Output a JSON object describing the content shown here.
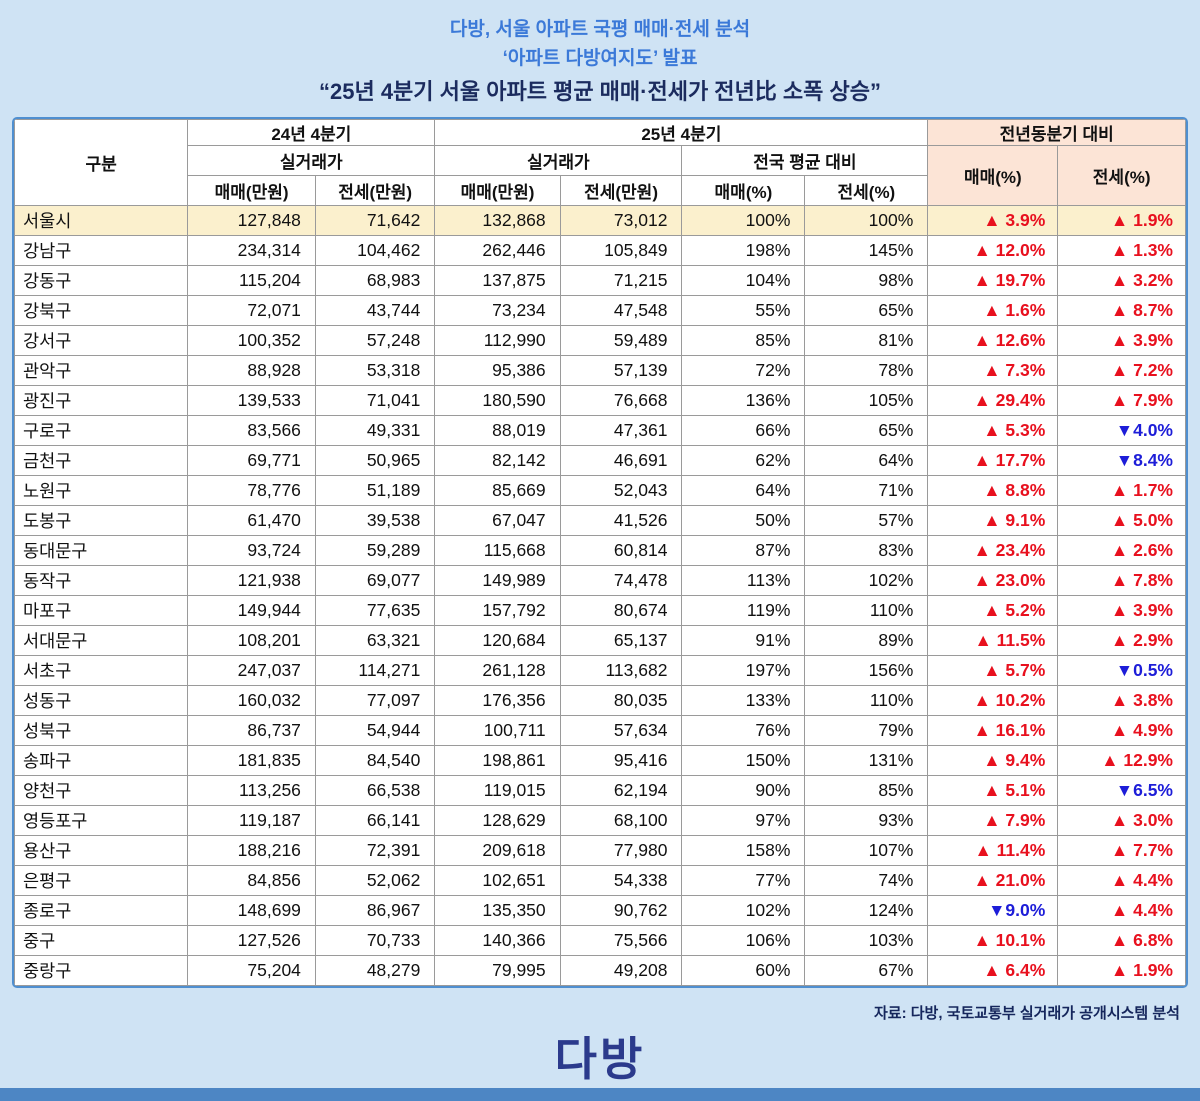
{
  "title": {
    "line1": "다방, 서울 아파트 국평 매매·전세 분석",
    "line2": "‘아파트 다방여지도’ 발표",
    "line3": "“25년 4분기 서울 아파트 평균 매매·전세가 전년比 소폭 상승”"
  },
  "table": {
    "headers": {
      "gubun": "구분",
      "q4_24": "24년 4분기",
      "q4_25": "25년 4분기",
      "yoy": "전년동분기 대비",
      "actual": "실거래가",
      "national_avg": "전국 평균 대비",
      "sale_manwon": "매매(만원)",
      "jeonse_manwon": "전세(만원)",
      "sale_pct": "매매(%)",
      "jeonse_pct": "전세(%)"
    }
  },
  "chart_data": {
    "type": "table",
    "title": "25년 4분기 서울 아파트 평균 매매·전세가 전년比 소폭 상승",
    "column_groups": [
      "구분",
      "24년 4분기 실거래가",
      "25년 4분기 실거래가",
      "25년 4분기 전국 평균 대비",
      "전년동분기 대비"
    ],
    "columns": [
      "구분",
      "24년4분기 매매(만원)",
      "24년4분기 전세(만원)",
      "25년4분기 매매(만원)",
      "25년4분기 전세(만원)",
      "전국평균대비 매매(%)",
      "전국평균대비 전세(%)",
      "전년동분기대비 매매(%)",
      "전년동분기대비 전세(%)"
    ],
    "rows": [
      {
        "name": "서울시",
        "highlight": true,
        "values": [
          "127,848",
          "71,642",
          "132,868",
          "73,012",
          "100%",
          "100%"
        ],
        "sale_change": "▲ 3.9%",
        "jeonse_change": "▲ 1.9%"
      },
      {
        "name": "강남구",
        "highlight": false,
        "values": [
          "234,314",
          "104,462",
          "262,446",
          "105,849",
          "198%",
          "145%"
        ],
        "sale_change": "▲ 12.0%",
        "jeonse_change": "▲ 1.3%"
      },
      {
        "name": "강동구",
        "highlight": false,
        "values": [
          "115,204",
          "68,983",
          "137,875",
          "71,215",
          "104%",
          "98%"
        ],
        "sale_change": "▲ 19.7%",
        "jeonse_change": "▲ 3.2%"
      },
      {
        "name": "강북구",
        "highlight": false,
        "values": [
          "72,071",
          "43,744",
          "73,234",
          "47,548",
          "55%",
          "65%"
        ],
        "sale_change": "▲ 1.6%",
        "jeonse_change": "▲ 8.7%"
      },
      {
        "name": "강서구",
        "highlight": false,
        "values": [
          "100,352",
          "57,248",
          "112,990",
          "59,489",
          "85%",
          "81%"
        ],
        "sale_change": "▲ 12.6%",
        "jeonse_change": "▲ 3.9%"
      },
      {
        "name": "관악구",
        "highlight": false,
        "values": [
          "88,928",
          "53,318",
          "95,386",
          "57,139",
          "72%",
          "78%"
        ],
        "sale_change": "▲ 7.3%",
        "jeonse_change": "▲ 7.2%"
      },
      {
        "name": "광진구",
        "highlight": false,
        "values": [
          "139,533",
          "71,041",
          "180,590",
          "76,668",
          "136%",
          "105%"
        ],
        "sale_change": "▲ 29.4%",
        "jeonse_change": "▲ 7.9%"
      },
      {
        "name": "구로구",
        "highlight": false,
        "values": [
          "83,566",
          "49,331",
          "88,019",
          "47,361",
          "66%",
          "65%"
        ],
        "sale_change": "▲ 5.3%",
        "jeonse_change": "▼4.0%"
      },
      {
        "name": "금천구",
        "highlight": false,
        "values": [
          "69,771",
          "50,965",
          "82,142",
          "46,691",
          "62%",
          "64%"
        ],
        "sale_change": "▲ 17.7%",
        "jeonse_change": "▼8.4%"
      },
      {
        "name": "노원구",
        "highlight": false,
        "values": [
          "78,776",
          "51,189",
          "85,669",
          "52,043",
          "64%",
          "71%"
        ],
        "sale_change": "▲ 8.8%",
        "jeonse_change": "▲ 1.7%"
      },
      {
        "name": "도봉구",
        "highlight": false,
        "values": [
          "61,470",
          "39,538",
          "67,047",
          "41,526",
          "50%",
          "57%"
        ],
        "sale_change": "▲ 9.1%",
        "jeonse_change": "▲ 5.0%"
      },
      {
        "name": "동대문구",
        "highlight": false,
        "values": [
          "93,724",
          "59,289",
          "115,668",
          "60,814",
          "87%",
          "83%"
        ],
        "sale_change": "▲ 23.4%",
        "jeonse_change": "▲ 2.6%"
      },
      {
        "name": "동작구",
        "highlight": false,
        "values": [
          "121,938",
          "69,077",
          "149,989",
          "74,478",
          "113%",
          "102%"
        ],
        "sale_change": "▲ 23.0%",
        "jeonse_change": "▲ 7.8%"
      },
      {
        "name": "마포구",
        "highlight": false,
        "values": [
          "149,944",
          "77,635",
          "157,792",
          "80,674",
          "119%",
          "110%"
        ],
        "sale_change": "▲ 5.2%",
        "jeonse_change": "▲ 3.9%"
      },
      {
        "name": "서대문구",
        "highlight": false,
        "values": [
          "108,201",
          "63,321",
          "120,684",
          "65,137",
          "91%",
          "89%"
        ],
        "sale_change": "▲ 11.5%",
        "jeonse_change": "▲ 2.9%"
      },
      {
        "name": "서초구",
        "highlight": false,
        "values": [
          "247,037",
          "114,271",
          "261,128",
          "113,682",
          "197%",
          "156%"
        ],
        "sale_change": "▲ 5.7%",
        "jeonse_change": "▼0.5%"
      },
      {
        "name": "성동구",
        "highlight": false,
        "values": [
          "160,032",
          "77,097",
          "176,356",
          "80,035",
          "133%",
          "110%"
        ],
        "sale_change": "▲ 10.2%",
        "jeonse_change": "▲ 3.8%"
      },
      {
        "name": "성북구",
        "highlight": false,
        "values": [
          "86,737",
          "54,944",
          "100,711",
          "57,634",
          "76%",
          "79%"
        ],
        "sale_change": "▲ 16.1%",
        "jeonse_change": "▲ 4.9%"
      },
      {
        "name": "송파구",
        "highlight": false,
        "values": [
          "181,835",
          "84,540",
          "198,861",
          "95,416",
          "150%",
          "131%"
        ],
        "sale_change": "▲ 9.4%",
        "jeonse_change": "▲ 12.9%"
      },
      {
        "name": "양천구",
        "highlight": false,
        "values": [
          "113,256",
          "66,538",
          "119,015",
          "62,194",
          "90%",
          "85%"
        ],
        "sale_change": "▲ 5.1%",
        "jeonse_change": "▼6.5%"
      },
      {
        "name": "영등포구",
        "highlight": false,
        "values": [
          "119,187",
          "66,141",
          "128,629",
          "68,100",
          "97%",
          "93%"
        ],
        "sale_change": "▲ 7.9%",
        "jeonse_change": "▲ 3.0%"
      },
      {
        "name": "용산구",
        "highlight": false,
        "values": [
          "188,216",
          "72,391",
          "209,618",
          "77,980",
          "158%",
          "107%"
        ],
        "sale_change": "▲ 11.4%",
        "jeonse_change": "▲ 7.7%"
      },
      {
        "name": "은평구",
        "highlight": false,
        "values": [
          "84,856",
          "52,062",
          "102,651",
          "54,338",
          "77%",
          "74%"
        ],
        "sale_change": "▲ 21.0%",
        "jeonse_change": "▲ 4.4%"
      },
      {
        "name": "종로구",
        "highlight": false,
        "values": [
          "148,699",
          "86,967",
          "135,350",
          "90,762",
          "102%",
          "124%"
        ],
        "sale_change": "▼9.0%",
        "jeonse_change": "▲ 4.4%"
      },
      {
        "name": "중구",
        "highlight": false,
        "values": [
          "127,526",
          "70,733",
          "140,366",
          "75,566",
          "106%",
          "103%"
        ],
        "sale_change": "▲ 10.1%",
        "jeonse_change": "▲ 6.8%"
      },
      {
        "name": "중랑구",
        "highlight": false,
        "values": [
          "75,204",
          "48,279",
          "79,995",
          "49,208",
          "60%",
          "67%"
        ],
        "sale_change": "▲ 6.4%",
        "jeonse_change": "▲ 1.9%"
      }
    ]
  },
  "footer": {
    "source": "자료: 다방, 국토교통부 실거래가 공개시스템 분석",
    "logo": "다방"
  },
  "colors": {
    "page_bg": "#cfe3f4",
    "title_blue": "#3b79d8",
    "headline_navy": "#1b2b5e",
    "table_border_blue": "#4f8fd0",
    "grid_line": "#9a9a9a",
    "seoul_row_bg": "#fbf0cd",
    "yoy_header_bg": "#fce4d6",
    "up_red": "#e8101e",
    "down_blue": "#1d1dd8",
    "logo_navy": "#2b3a8c",
    "bottom_bar_blue": "#4d86c4"
  }
}
